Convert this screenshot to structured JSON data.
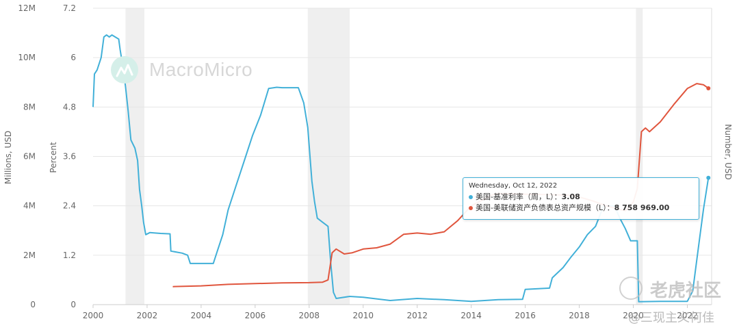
{
  "chart_data": {
    "type": "line",
    "axes": {
      "left_outer": {
        "label": "Millions, USD",
        "ticks": [
          "12M",
          "10M",
          "8M",
          "6M",
          "4M",
          "2M",
          "0"
        ],
        "range": [
          0,
          12000000
        ]
      },
      "left_inner": {
        "label": "Percent",
        "ticks": [
          "7.2",
          "6",
          "4.8",
          "3.6",
          "2.4",
          "1.2",
          "0"
        ],
        "range": [
          0,
          7.2
        ]
      },
      "right": {
        "label": "Number, USD"
      },
      "x": {
        "ticks": [
          "2000",
          "2002",
          "2004",
          "2006",
          "2008",
          "2010",
          "2012",
          "2014",
          "2016",
          "2018",
          "2020",
          "2022"
        ],
        "range": [
          2000,
          2022.9
        ]
      }
    },
    "recessions": [
      [
        2001.2,
        2001.9
      ],
      [
        2007.95,
        2009.5
      ],
      [
        2020.1,
        2020.35
      ]
    ],
    "series": [
      {
        "name": "美国-基准利率（周，L）",
        "color": "#41b0d8",
        "axis": "left_inner",
        "points": [
          [
            2000.0,
            4.8
          ],
          [
            2000.05,
            5.6
          ],
          [
            2000.15,
            5.7
          ],
          [
            2000.3,
            6.0
          ],
          [
            2000.4,
            6.5
          ],
          [
            2000.5,
            6.55
          ],
          [
            2000.6,
            6.5
          ],
          [
            2000.7,
            6.55
          ],
          [
            2000.95,
            6.45
          ],
          [
            2001.0,
            6.2
          ],
          [
            2001.1,
            5.8
          ],
          [
            2001.2,
            5.3
          ],
          [
            2001.3,
            4.7
          ],
          [
            2001.4,
            4.0
          ],
          [
            2001.55,
            3.8
          ],
          [
            2001.65,
            3.5
          ],
          [
            2001.72,
            2.8
          ],
          [
            2001.8,
            2.4
          ],
          [
            2001.87,
            2.0
          ],
          [
            2001.95,
            1.7
          ],
          [
            2002.1,
            1.75
          ],
          [
            2002.5,
            1.73
          ],
          [
            2002.85,
            1.72
          ],
          [
            2002.88,
            1.3
          ],
          [
            2003.3,
            1.25
          ],
          [
            2003.5,
            1.2
          ],
          [
            2003.6,
            1.0
          ],
          [
            2004.0,
            1.0
          ],
          [
            2004.45,
            1.0
          ],
          [
            2004.6,
            1.3
          ],
          [
            2004.8,
            1.7
          ],
          [
            2005.0,
            2.3
          ],
          [
            2005.3,
            2.9
          ],
          [
            2005.6,
            3.5
          ],
          [
            2005.9,
            4.1
          ],
          [
            2006.2,
            4.6
          ],
          [
            2006.5,
            5.25
          ],
          [
            2006.8,
            5.28
          ],
          [
            2007.0,
            5.27
          ],
          [
            2007.6,
            5.27
          ],
          [
            2007.8,
            4.9
          ],
          [
            2007.95,
            4.3
          ],
          [
            2008.1,
            3.0
          ],
          [
            2008.2,
            2.5
          ],
          [
            2008.3,
            2.1
          ],
          [
            2008.5,
            2.0
          ],
          [
            2008.7,
            1.9
          ],
          [
            2008.8,
            1.0
          ],
          [
            2008.9,
            0.3
          ],
          [
            2009.0,
            0.15
          ],
          [
            2009.5,
            0.2
          ],
          [
            2010.0,
            0.18
          ],
          [
            2011.0,
            0.1
          ],
          [
            2012.0,
            0.15
          ],
          [
            2013.0,
            0.12
          ],
          [
            2014.0,
            0.08
          ],
          [
            2015.0,
            0.12
          ],
          [
            2015.9,
            0.13
          ],
          [
            2016.0,
            0.37
          ],
          [
            2016.9,
            0.4
          ],
          [
            2017.0,
            0.65
          ],
          [
            2017.4,
            0.9
          ],
          [
            2017.7,
            1.16
          ],
          [
            2018.0,
            1.4
          ],
          [
            2018.3,
            1.7
          ],
          [
            2018.6,
            1.9
          ],
          [
            2018.9,
            2.4
          ],
          [
            2019.3,
            2.4
          ],
          [
            2019.5,
            2.1
          ],
          [
            2019.7,
            1.85
          ],
          [
            2019.9,
            1.55
          ],
          [
            2020.15,
            1.55
          ],
          [
            2020.2,
            0.07
          ],
          [
            2021.0,
            0.08
          ],
          [
            2022.0,
            0.08
          ],
          [
            2022.2,
            0.33
          ],
          [
            2022.3,
            0.83
          ],
          [
            2022.45,
            1.58
          ],
          [
            2022.6,
            2.33
          ],
          [
            2022.78,
            3.08
          ]
        ]
      },
      {
        "name": "美国-美联储资产负债表总资产规模（L）",
        "color": "#e0553d",
        "axis": "left_outer",
        "points": [
          [
            2002.95,
            730000
          ],
          [
            2004.0,
            760000
          ],
          [
            2005.0,
            820000
          ],
          [
            2006.0,
            850000
          ],
          [
            2007.0,
            880000
          ],
          [
            2008.0,
            890000
          ],
          [
            2008.5,
            910000
          ],
          [
            2008.7,
            1000000
          ],
          [
            2008.85,
            2100000
          ],
          [
            2009.0,
            2250000
          ],
          [
            2009.3,
            2050000
          ],
          [
            2009.6,
            2100000
          ],
          [
            2010.0,
            2250000
          ],
          [
            2010.5,
            2300000
          ],
          [
            2011.0,
            2450000
          ],
          [
            2011.5,
            2850000
          ],
          [
            2012.0,
            2900000
          ],
          [
            2012.5,
            2850000
          ],
          [
            2013.0,
            2950000
          ],
          [
            2013.5,
            3400000
          ],
          [
            2014.0,
            4000000
          ],
          [
            2014.8,
            4450000
          ],
          [
            2015.0,
            4500000
          ],
          [
            2016.0,
            4470000
          ],
          [
            2017.0,
            4450000
          ],
          [
            2017.8,
            4420000
          ],
          [
            2018.5,
            4200000
          ],
          [
            2019.0,
            4000000
          ],
          [
            2019.7,
            3800000
          ],
          [
            2020.0,
            4150000
          ],
          [
            2020.15,
            4700000
          ],
          [
            2020.3,
            7000000
          ],
          [
            2020.45,
            7150000
          ],
          [
            2020.6,
            7000000
          ],
          [
            2021.0,
            7400000
          ],
          [
            2021.5,
            8100000
          ],
          [
            2022.0,
            8750000
          ],
          [
            2022.35,
            8950000
          ],
          [
            2022.6,
            8900000
          ],
          [
            2022.78,
            8758969
          ]
        ]
      }
    ],
    "tooltip": {
      "date": "Wednesday, Oct 12, 2022",
      "rows": [
        {
          "name": "美国-基准利率（周，L）：",
          "value": "3.08",
          "color": "#41b0d8"
        },
        {
          "name": "美国-美联储资产负债表总资产规模（L）：",
          "value": "8 758 969.00",
          "color": "#e0553d"
        }
      ]
    }
  },
  "branding": {
    "logo_text": "MacroMicro",
    "watermark_top": "老虎社区",
    "watermark_bottom": "@三现主义何佳"
  }
}
